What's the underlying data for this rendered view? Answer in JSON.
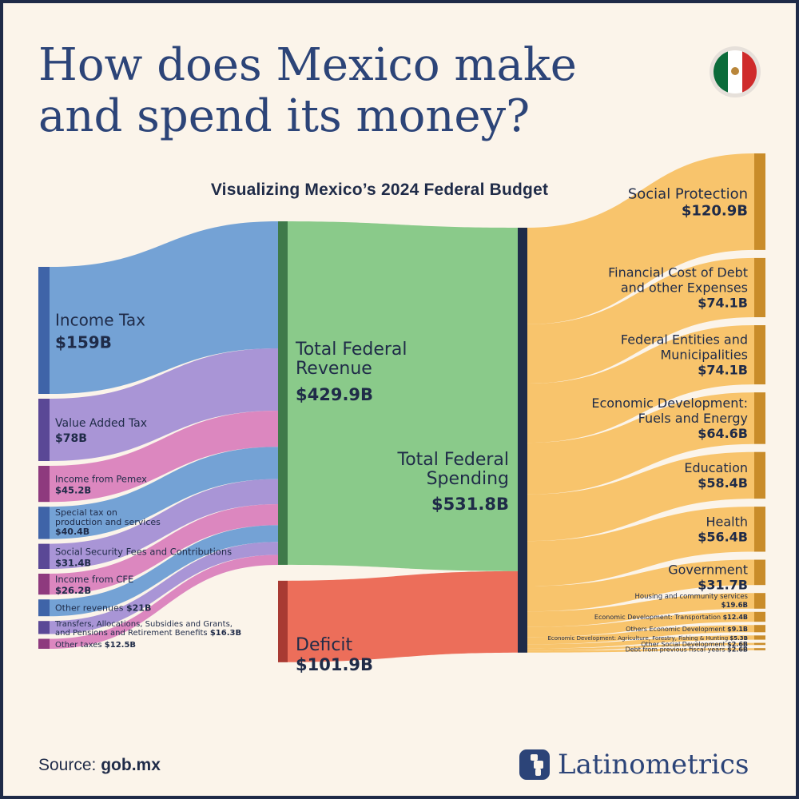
{
  "title_line1": "How does Mexico make",
  "title_line2": "and spend its money?",
  "subtitle": "Visualizing Mexico’s 2024 Federal Budget",
  "source_label": "Source:",
  "source_value": "gob.mx",
  "brand": "Latinometrics",
  "flag_icon": "mexico-flag-icon",
  "colors": {
    "background": "#fbf4ea",
    "title": "#2c4478",
    "revenue_node": "#8aca8a",
    "revenue_bar": "#3f7a4a",
    "deficit_node": "#ec6e5a",
    "deficit_bar": "#a83a33",
    "spending_bar": "#1f2b48",
    "spending_flow": "#f8c46c",
    "spending_bar_right": "#c98c2a"
  },
  "chart_data": {
    "type": "sankey",
    "unit": "$B",
    "sources": [
      {
        "label": "Income Tax",
        "value_label": "$159B",
        "value": 159,
        "color": "#74a2d5",
        "bar": "#3f64a8"
      },
      {
        "label": "Value Added Tax",
        "value_label": "$78B",
        "value": 78,
        "color": "#a995d6",
        "bar": "#5a4896"
      },
      {
        "label": "Income from Pemex",
        "value_label": "$45.2B",
        "value": 45.2,
        "color": "#dc87bf",
        "bar": "#8e3a7e"
      },
      {
        "label": "Special tax on production and services",
        "value_label": "$40.4B",
        "value": 40.4,
        "color": "#74a2d5",
        "bar": "#3f64a8"
      },
      {
        "label": "Social Security Fees and Contributions",
        "value_label": "$31.4B",
        "value": 31.4,
        "color": "#a995d6",
        "bar": "#5a4896"
      },
      {
        "label": "Income from CFE",
        "value_label": "$26.2B",
        "value": 26.2,
        "color": "#dc87bf",
        "bar": "#8e3a7e"
      },
      {
        "label": "Other revenues",
        "value_label": "$21B",
        "value": 21,
        "color": "#74a2d5",
        "bar": "#3f64a8"
      },
      {
        "label": "Transfers, Allocations, Subsidies and Grants, and Pensions and Retirement Benefits",
        "value_label": "$16.3B",
        "value": 16.3,
        "color": "#a995d6",
        "bar": "#5a4896"
      },
      {
        "label": "Other taxes",
        "value_label": "$12.5B",
        "value": 12.5,
        "color": "#dc87bf",
        "bar": "#8e3a7e"
      }
    ],
    "revenue": {
      "label": "Total Federal Revenue",
      "value_label": "$429.9B",
      "value": 429.9
    },
    "deficit": {
      "label": "Deficit",
      "value_label": "$101.9B",
      "value": 101.9
    },
    "spending": {
      "label": "Total Federal Spending",
      "value_label": "$531.8B",
      "value": 531.8
    },
    "uses": [
      {
        "label": "Social Protection",
        "value_label": "$120.9B",
        "value": 120.9
      },
      {
        "label": "Financial Cost of Debt and other Expenses",
        "value_label": "$74.1B",
        "value": 74.1
      },
      {
        "label": "Federal Entities and Municipalities",
        "value_label": "$74.1B",
        "value": 74.1
      },
      {
        "label": "Economic Development: Fuels and Energy",
        "value_label": "$64.6B",
        "value": 64.6
      },
      {
        "label": "Education",
        "value_label": "$58.4B",
        "value": 58.4
      },
      {
        "label": "Health",
        "value_label": "$56.4B",
        "value": 56.4
      },
      {
        "label": "Government",
        "value_label": "$31.7B",
        "value": 31.7
      },
      {
        "label": "Housing and community services",
        "value_label": "$19.6B",
        "value": 19.6
      },
      {
        "label": "Economic Development: Transportation",
        "value_label": "$12.4B",
        "value": 12.4
      },
      {
        "label": "Others Economic Development",
        "value_label": "$9.1B",
        "value": 9.1
      },
      {
        "label": "Economic Development: Agriculture, Forestry, Fishing & Hunting",
        "value_label": "$5.3B",
        "value": 5.3
      },
      {
        "label": "Other Social Development",
        "value_label": "$2.6B",
        "value": 2.6
      },
      {
        "label": "Debt from previous fiscal years",
        "value_label": "$2.6B",
        "value": 2.6
      }
    ]
  }
}
